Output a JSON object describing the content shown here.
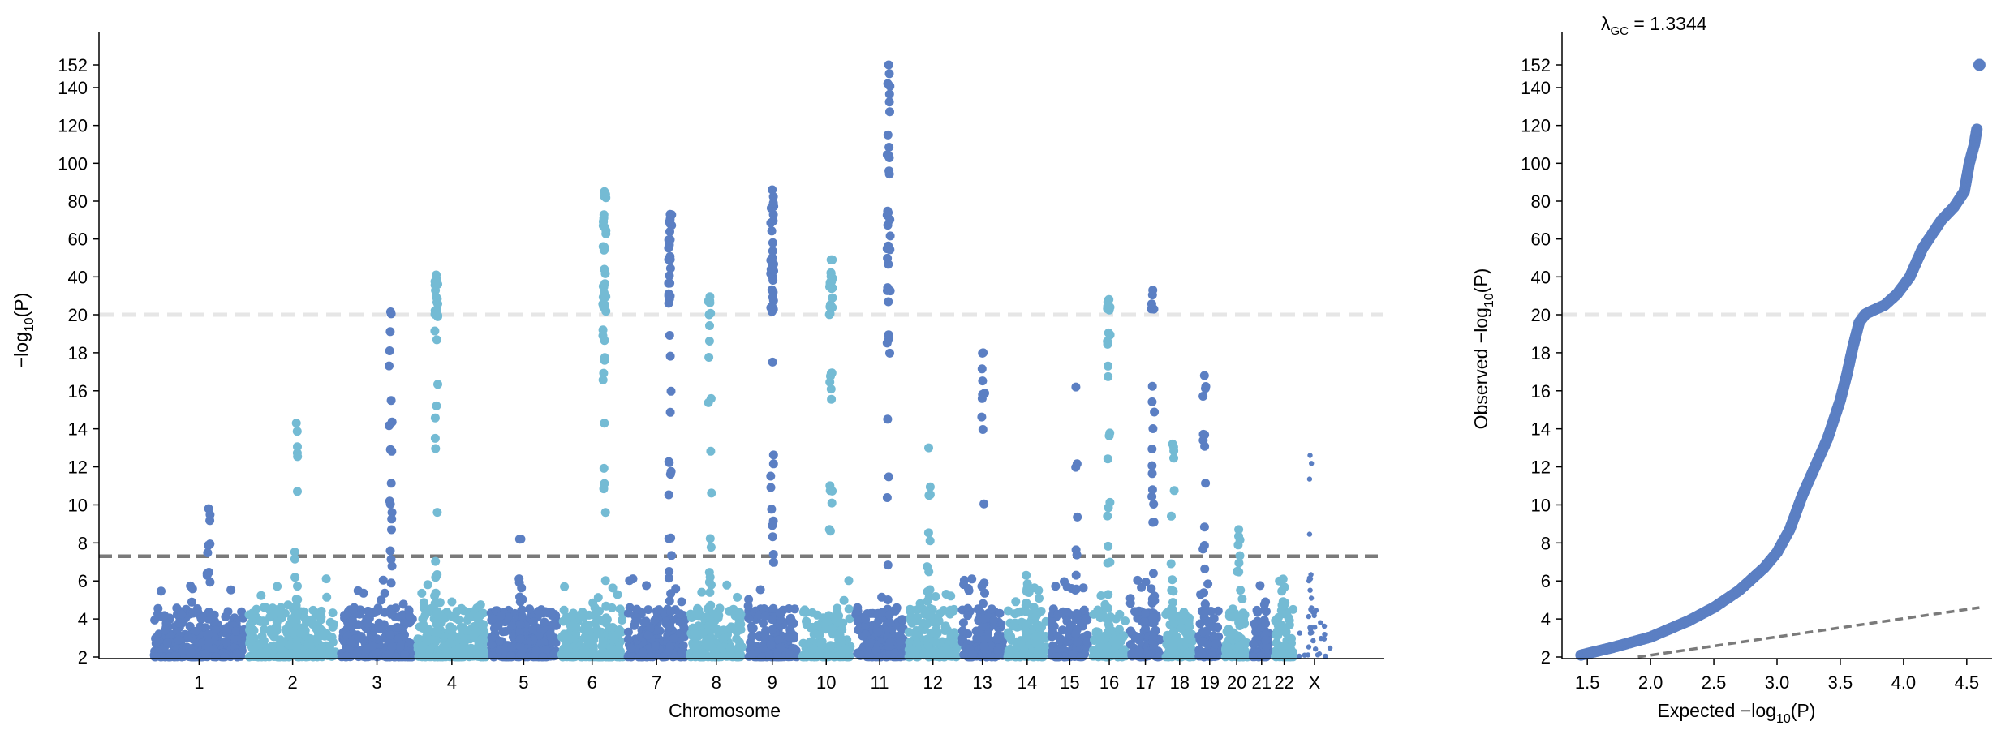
{
  "colors": {
    "dark": "#5b7fc3",
    "light": "#74bbd4",
    "sig_line": "#7a7a7a",
    "break_line": "#e6e6e6",
    "qq_points": "#5b7fc3",
    "qq_diag": "#7a7a7a"
  },
  "chart_data": [
    {
      "type": "scatter",
      "subtype": "manhattan",
      "title": "",
      "xlabel": "Chromosome",
      "ylabel": "−log10(P)",
      "ylabel_parts": {
        "pre": "−log",
        "sub": "10",
        "post": "(P)"
      },
      "y_axis_break": 20,
      "y_ticks_lower": [
        2,
        4,
        6,
        8,
        10,
        12,
        14,
        16,
        18,
        20
      ],
      "y_ticks_upper": [
        40,
        60,
        80,
        100,
        120,
        140,
        152
      ],
      "y_range_lower": [
        2,
        20
      ],
      "y_range_upper": [
        20,
        152
      ],
      "significance_threshold": 7.3,
      "chromosomes": [
        {
          "label": "1",
          "size": 249,
          "peak": 9.8
        },
        {
          "label": "2",
          "size": 242,
          "peak": 14.3
        },
        {
          "label": "3",
          "size": 198,
          "peak": 21.5
        },
        {
          "label": "4",
          "size": 190,
          "peak": 41
        },
        {
          "label": "5",
          "size": 181,
          "peak": 8.2
        },
        {
          "label": "6",
          "size": 171,
          "peak": 85
        },
        {
          "label": "7",
          "size": 159,
          "peak": 73
        },
        {
          "label": "8",
          "size": 145,
          "peak": 29.5
        },
        {
          "label": "9",
          "size": 138,
          "peak": 86
        },
        {
          "label": "10",
          "size": 134,
          "peak": 49
        },
        {
          "label": "11",
          "size": 135,
          "peak": 152
        },
        {
          "label": "12",
          "size": 133,
          "peak": 13
        },
        {
          "label": "13",
          "size": 114,
          "peak": 18
        },
        {
          "label": "14",
          "size": 107,
          "peak": 6.3
        },
        {
          "label": "15",
          "size": 102,
          "peak": 16.2
        },
        {
          "label": "16",
          "size": 90,
          "peak": 28
        },
        {
          "label": "17",
          "size": 83,
          "peak": 33
        },
        {
          "label": "18",
          "size": 80,
          "peak": 13.2
        },
        {
          "label": "19",
          "size": 59,
          "peak": 16.8
        },
        {
          "label": "20",
          "size": 64,
          "peak": 8.7
        },
        {
          "label": "21",
          "size": 47,
          "peak": 4.9
        },
        {
          "label": "22",
          "size": 51,
          "peak": 6.1
        },
        {
          "label": "X",
          "size": 90,
          "peak": 12.6
        }
      ]
    },
    {
      "type": "scatter",
      "subtype": "qq",
      "annotation": "λGC = 1.3344",
      "annotation_parts": {
        "pre": "λ",
        "sub": "GC",
        "post": " = 1.3344"
      },
      "xlabel": "Expected −log10(P)",
      "xlabel_parts": {
        "pre": "Expected −log",
        "sub": "10",
        "post": "(P)"
      },
      "ylabel": "Observed −log10(P)",
      "ylabel_parts": {
        "pre": "Observed −log",
        "sub": "10",
        "post": "(P)"
      },
      "x_ticks": [
        1.5,
        2.0,
        2.5,
        3.0,
        3.5,
        4.0,
        4.5
      ],
      "x_tick_labels": [
        "1.5",
        "2.0",
        "2.5",
        "3.0",
        "3.5",
        "4.0",
        "4.5"
      ],
      "x_range": [
        1.3,
        4.7
      ],
      "y_axis_break": 20,
      "y_ticks_lower": [
        2,
        4,
        6,
        8,
        10,
        12,
        14,
        16,
        18,
        20
      ],
      "y_ticks_upper": [
        40,
        60,
        80,
        100,
        120,
        140,
        152
      ],
      "curve": [
        [
          1.45,
          2.1
        ],
        [
          1.7,
          2.5
        ],
        [
          2.0,
          3.05
        ],
        [
          2.3,
          3.9
        ],
        [
          2.5,
          4.6
        ],
        [
          2.7,
          5.5
        ],
        [
          2.9,
          6.7
        ],
        [
          3.0,
          7.5
        ],
        [
          3.1,
          8.7
        ],
        [
          3.2,
          10.5
        ],
        [
          3.3,
          12.0
        ],
        [
          3.4,
          13.5
        ],
        [
          3.5,
          15.5
        ],
        [
          3.55,
          16.8
        ],
        [
          3.6,
          18.3
        ],
        [
          3.65,
          19.6
        ],
        [
          3.7,
          20.4
        ],
        [
          3.75,
          22
        ],
        [
          3.85,
          25
        ],
        [
          3.95,
          31
        ],
        [
          4.05,
          40
        ],
        [
          4.15,
          55
        ],
        [
          4.3,
          70
        ],
        [
          4.4,
          77
        ],
        [
          4.48,
          85
        ],
        [
          4.52,
          100
        ],
        [
          4.56,
          110
        ],
        [
          4.58,
          118
        ]
      ],
      "top_point": [
        4.6,
        152
      ],
      "expected_line": [
        [
          1.9,
          2.0
        ],
        [
          4.6,
          4.6
        ]
      ]
    }
  ]
}
